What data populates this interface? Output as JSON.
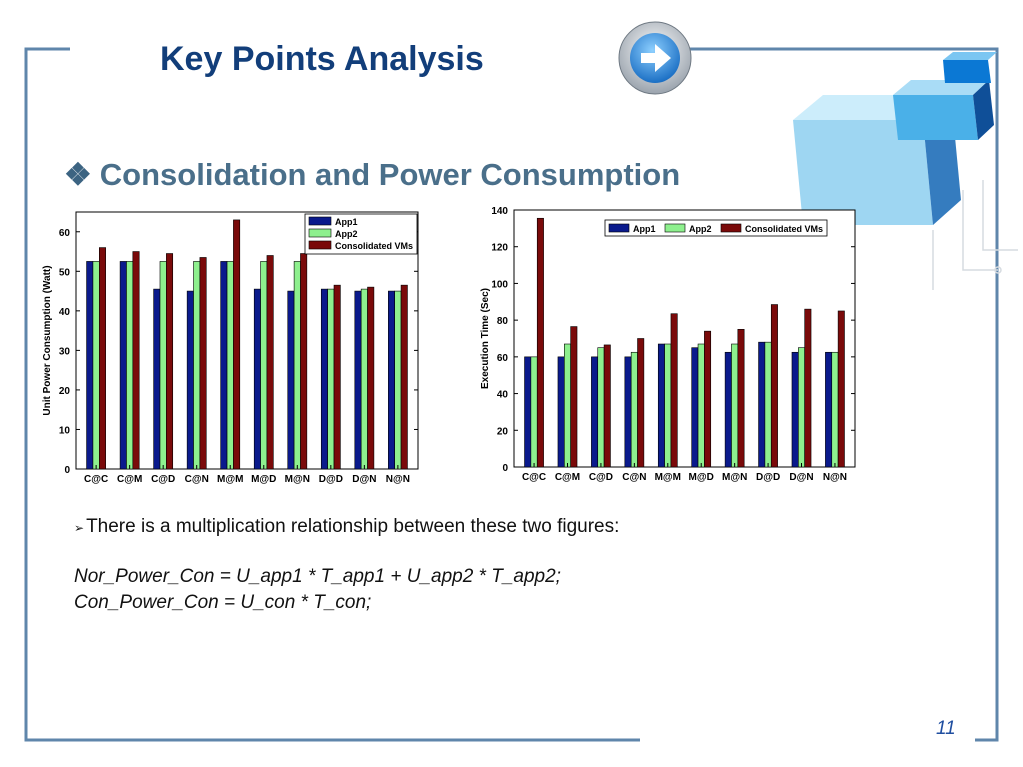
{
  "slide": {
    "title": "Key Points Analysis",
    "subtitle_mark": "❖",
    "subtitle": "Consolidation and Power Consumption",
    "bullet_arrow": "➢",
    "bullet_text": "There is a multiplication relationship between these two figures:",
    "formula_1": "Nor_Power_Con = U_app1 * T_app1 + U_app2 * T_app2;",
    "formula_2": "Con_Power_Con = U_con * T_con;",
    "page_number": "11",
    "colors": {
      "frame": "#5f86ab",
      "title": "#123e7a",
      "subtitle": "#4a6f8a",
      "arrow_button": "#2f8fd8"
    }
  },
  "chart_data": [
    {
      "type": "bar",
      "ylabel": "Unit Power Consumption (Watt)",
      "xlabel": "",
      "ylim": [
        0,
        65
      ],
      "yticks": [
        0,
        10,
        20,
        30,
        40,
        50,
        60
      ],
      "grid": false,
      "legend": "top-right",
      "categories": [
        "C@C",
        "C@M",
        "C@D",
        "C@N",
        "M@M",
        "M@D",
        "M@N",
        "D@D",
        "D@N",
        "N@N"
      ],
      "series": [
        {
          "name": "App1",
          "color": "#0a1a8c",
          "values": [
            52.5,
            52.5,
            45.5,
            45,
            52.5,
            45.5,
            45,
            45.5,
            45,
            45
          ]
        },
        {
          "name": "App2",
          "color": "#8ef08e",
          "values": [
            52.5,
            52.5,
            52.5,
            52.5,
            52.5,
            52.5,
            52.5,
            45.5,
            45.5,
            45
          ]
        },
        {
          "name": "Consolidated VMs",
          "color": "#7a0a0a",
          "values": [
            56,
            55,
            54.5,
            53.5,
            63,
            54,
            54.5,
            46.5,
            46,
            46.5
          ]
        }
      ]
    },
    {
      "type": "bar",
      "ylabel": "Execution Time (Sec)",
      "xlabel": "",
      "ylim": [
        0,
        140
      ],
      "yticks": [
        0,
        20,
        40,
        60,
        80,
        100,
        120,
        140
      ],
      "grid": false,
      "legend": "top-right",
      "categories": [
        "C@C",
        "C@M",
        "C@D",
        "C@N",
        "M@M",
        "M@D",
        "M@N",
        "D@D",
        "D@N",
        "N@N"
      ],
      "series": [
        {
          "name": "App1",
          "color": "#0a1a8c",
          "values": [
            60,
            60,
            60,
            60,
            67,
            65,
            62.5,
            68,
            62.5,
            62.5
          ]
        },
        {
          "name": "App2",
          "color": "#8ef08e",
          "values": [
            60,
            67,
            65,
            62.5,
            67,
            67,
            67,
            68,
            65,
            62.5
          ]
        },
        {
          "name": "Consolidated VMs",
          "color": "#7a0a0a",
          "values": [
            135.5,
            76.5,
            66.5,
            70,
            83.5,
            74,
            75,
            88.5,
            86,
            85
          ]
        }
      ]
    }
  ]
}
